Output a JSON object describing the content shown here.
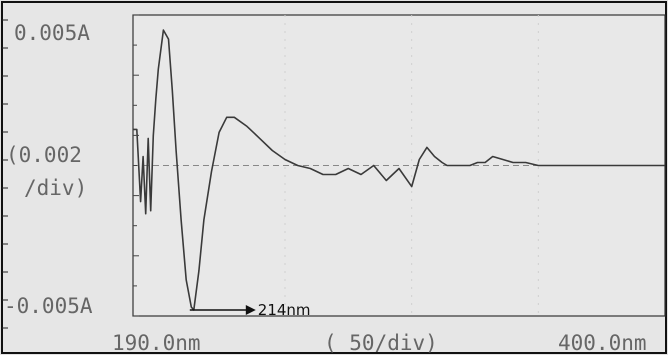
{
  "chart_data": {
    "type": "line",
    "y_top_label": "0.005A",
    "y_bottom_label": "-0.005A",
    "y_scale_label_1": "(0.002",
    "y_scale_label_2": "/div)",
    "x_start_label": "190.0nm",
    "x_mid_label": "(  50/div)",
    "x_end_label": "400.0nm",
    "annotation": "214nm",
    "annotation_x": 214,
    "xlim": [
      190,
      400
    ],
    "ylim": [
      -0.005,
      0.005
    ],
    "grid": true,
    "baseline_dashed": true,
    "line_color": "#3a3a3a",
    "series": [
      {
        "x": [
          190,
          191.5,
          193,
          194,
          195,
          196,
          197,
          198,
          199,
          200,
          202,
          204,
          205.5,
          207,
          209,
          211,
          213,
          214,
          216,
          218,
          221,
          224,
          227,
          230,
          235,
          240,
          245,
          250,
          255,
          260,
          265,
          270,
          275,
          280,
          285,
          290,
          295,
          300,
          303,
          306,
          309,
          312,
          314,
          317,
          320,
          323,
          326,
          329,
          332,
          336,
          340,
          345,
          350,
          360,
          370,
          380,
          390,
          400
        ],
        "y": [
          0.0012,
          0.0012,
          -0.0012,
          0.0003,
          -0.0016,
          0.0009,
          -0.0015,
          0.001,
          0.0022,
          0.0032,
          0.0045,
          0.0042,
          0.0025,
          0.0005,
          -0.0018,
          -0.0038,
          -0.0047,
          -0.0048,
          -0.0035,
          -0.0018,
          -0.0002,
          0.0011,
          0.0016,
          0.0016,
          0.0013,
          0.0009,
          0.0005,
          0.0002,
          0.0,
          -0.0001,
          -0.0003,
          -0.0003,
          -0.0001,
          -0.0003,
          0.0,
          -0.0005,
          -0.0001,
          -0.0007,
          0.0002,
          0.0006,
          0.0003,
          0.0001,
          0.0,
          0.0,
          0.0,
          0.0,
          0.0001,
          0.0001,
          0.0003,
          0.0002,
          0.0001,
          0.0001,
          0.0,
          0.0,
          0.0,
          0.0,
          0.0,
          0.0
        ]
      }
    ]
  }
}
